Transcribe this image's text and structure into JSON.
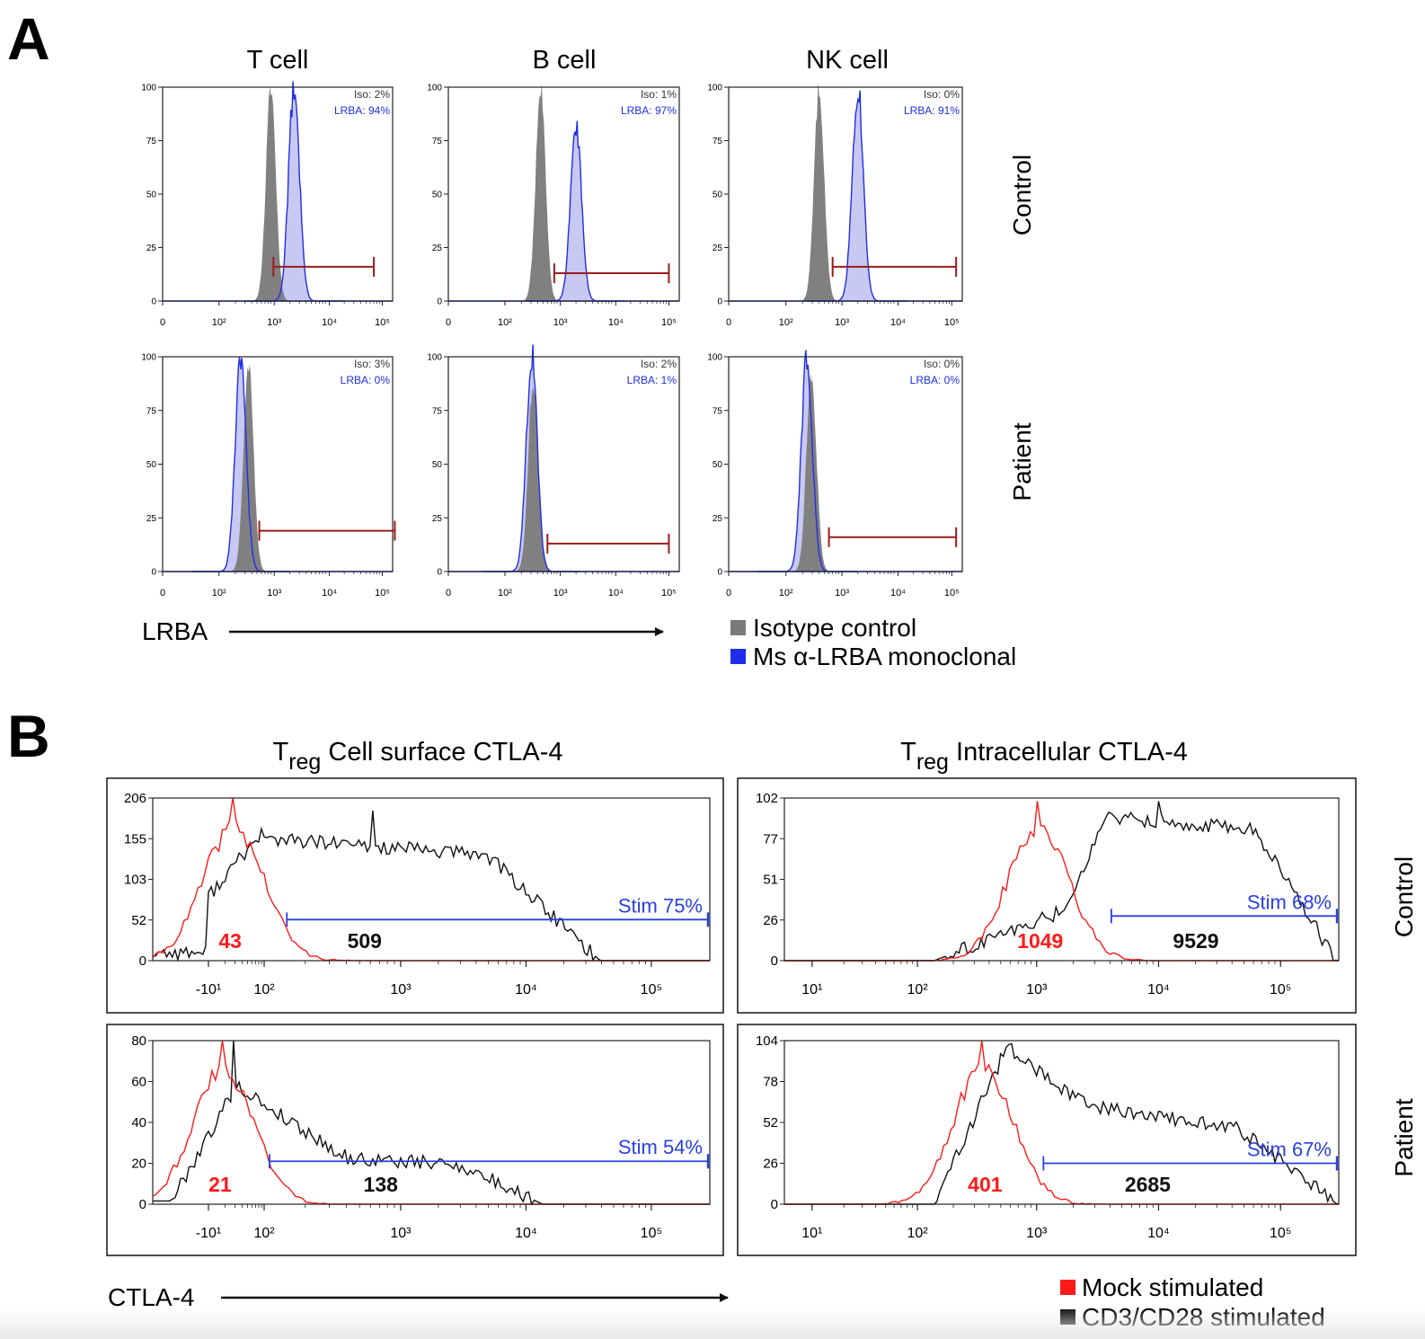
{
  "panel_a": {
    "label": "A",
    "columns": [
      "T cell",
      "B cell",
      "NK cell"
    ],
    "rows": [
      "Control",
      "Patient"
    ],
    "x_axis_label": "LRBA",
    "legend": [
      {
        "label": "Isotype control",
        "color": "#7a7a7a"
      },
      {
        "label": "Ms α-LRBA monoclonal",
        "color": "#1f2ee8"
      }
    ]
  },
  "panel_b": {
    "label": "B",
    "columns": [
      {
        "main": "T",
        "sub": "reg",
        "rest": " Cell surface CTLA-4"
      },
      {
        "main": "T",
        "sub": "reg",
        "rest": " Intracellular CTLA-4"
      }
    ],
    "rows": [
      "Control",
      "Patient"
    ],
    "x_axis_label": "CTLA-4",
    "legend": [
      {
        "label": "Mock stimulated",
        "color": "#ff1a1a"
      },
      {
        "label": "CD3/CD28 stimulated",
        "color": "#111111"
      }
    ]
  },
  "chart_data": [
    {
      "type": "line",
      "panel": "A",
      "cell": "T cell",
      "row": "Control",
      "xscale": "log",
      "ylim": [
        0,
        100
      ],
      "y_ticks": [
        "100",
        "75",
        "50",
        "25",
        "0"
      ],
      "x_ticks": [
        "0",
        "10²",
        "10³",
        "10⁴",
        "10⁵"
      ],
      "series": [
        {
          "name": "Iso",
          "peak_x": 900,
          "peak_y": 100,
          "gate_percent": "Iso: 2%"
        },
        {
          "name": "LRBA",
          "peak_x": 2400,
          "peak_y": 100,
          "gate_percent": "LRBA: 94%"
        }
      ],
      "gate": {
        "x_from": 1000,
        "x_to": 70000,
        "y": 16
      }
    },
    {
      "type": "line",
      "panel": "A",
      "cell": "B cell",
      "row": "Control",
      "xscale": "log",
      "ylim": [
        0,
        100
      ],
      "y_ticks": [
        "100",
        "75",
        "50",
        "25",
        "0"
      ],
      "x_ticks": [
        "0",
        "10²",
        "10³",
        "10⁴",
        "10⁵"
      ],
      "series": [
        {
          "name": "Iso",
          "peak_x": 450,
          "peak_y": 100,
          "gate_percent": "Iso: 1%"
        },
        {
          "name": "LRBA",
          "peak_x": 2000,
          "peak_y": 82,
          "gate_percent": "LRBA: 97%"
        }
      ],
      "gate": {
        "x_from": 800,
        "x_to": 100000,
        "y": 13
      }
    },
    {
      "type": "line",
      "panel": "A",
      "cell": "NK cell",
      "row": "Control",
      "xscale": "log",
      "ylim": [
        0,
        100
      ],
      "y_ticks": [
        "100",
        "75",
        "50",
        "25",
        "0"
      ],
      "x_ticks": [
        "0",
        "10²",
        "10³",
        "10⁴",
        "10⁵"
      ],
      "series": [
        {
          "name": "Iso",
          "peak_x": 400,
          "peak_y": 100,
          "gate_percent": "Iso: 0%"
        },
        {
          "name": "LRBA",
          "peak_x": 2000,
          "peak_y": 100,
          "gate_percent": "LRBA: 91%"
        }
      ],
      "gate": {
        "x_from": 700,
        "x_to": 120000,
        "y": 16
      }
    },
    {
      "type": "line",
      "panel": "A",
      "cell": "T cell",
      "row": "Patient",
      "xscale": "log",
      "ylim": [
        0,
        100
      ],
      "y_ticks": [
        "100",
        "75",
        "50",
        "25",
        "0"
      ],
      "x_ticks": [
        "0",
        "10²",
        "10³",
        "10⁴",
        "10⁵"
      ],
      "series": [
        {
          "name": "Iso",
          "peak_x": 350,
          "peak_y": 97,
          "gate_percent": "Iso: 3%"
        },
        {
          "name": "LRBA",
          "peak_x": 250,
          "peak_y": 100,
          "gate_percent": "LRBA: 0%"
        }
      ],
      "gate": {
        "x_from": 550,
        "x_to": 170000,
        "y": 19
      }
    },
    {
      "type": "line",
      "panel": "A",
      "cell": "B cell",
      "row": "Patient",
      "xscale": "log",
      "ylim": [
        0,
        100
      ],
      "y_ticks": [
        "100",
        "75",
        "50",
        "25",
        "0"
      ],
      "x_ticks": [
        "0",
        "10²",
        "10³",
        "10⁴",
        "10⁵"
      ],
      "series": [
        {
          "name": "Iso",
          "peak_x": 330,
          "peak_y": 90,
          "gate_percent": "Iso: 2%"
        },
        {
          "name": "LRBA",
          "peak_x": 310,
          "peak_y": 100,
          "gate_percent": "LRBA: 1%"
        }
      ],
      "gate": {
        "x_from": 600,
        "x_to": 100000,
        "y": 13
      }
    },
    {
      "type": "line",
      "panel": "A",
      "cell": "NK cell",
      "row": "Patient",
      "xscale": "log",
      "ylim": [
        0,
        100
      ],
      "y_ticks": [
        "100",
        "75",
        "50",
        "25",
        "0"
      ],
      "x_ticks": [
        "0",
        "10²",
        "10³",
        "10⁴",
        "10⁵"
      ],
      "series": [
        {
          "name": "Iso",
          "peak_x": 290,
          "peak_y": 92,
          "gate_percent": "Iso: 0%"
        },
        {
          "name": "LRBA",
          "peak_x": 240,
          "peak_y": 100,
          "gate_percent": "LRBA: 0%"
        }
      ],
      "gate": {
        "x_from": 600,
        "x_to": 120000,
        "y": 16
      }
    },
    {
      "type": "line",
      "panel": "B",
      "cell": "Treg Cell surface CTLA-4",
      "row": "Control",
      "xscale": "biexponential",
      "ylim": [
        0,
        206
      ],
      "y_ticks": [
        "206",
        "155",
        "103",
        "52",
        "0"
      ],
      "x_ticks": [
        "-10¹",
        "10²",
        "10³",
        "10⁴",
        "10⁵"
      ],
      "series": [
        {
          "name": "Mock stimulated",
          "peak_x": 40,
          "peak_y": 206,
          "mfi": "43"
        },
        {
          "name": "CD3/CD28 stimulated",
          "peak_x": 700,
          "peak_y": 190,
          "mfi": "509"
        }
      ],
      "gate": {
        "x_from": 150,
        "x_to": 300000,
        "y": 52,
        "label": "Stim 75%"
      }
    },
    {
      "type": "line",
      "panel": "B",
      "cell": "Treg Intracellular CTLA-4",
      "row": "Control",
      "xscale": "log",
      "ylim": [
        0,
        102
      ],
      "y_ticks": [
        "102",
        "77",
        "51",
        "26",
        "0"
      ],
      "x_ticks": [
        "10¹",
        "10²",
        "10³",
        "10⁴",
        "10⁵"
      ],
      "series": [
        {
          "name": "Mock stimulated",
          "peak_x": 1000,
          "peak_y": 100,
          "mfi": "1049"
        },
        {
          "name": "CD3/CD28 stimulated",
          "peak_x": 10000,
          "peak_y": 100,
          "mfi": "9529"
        }
      ],
      "gate": {
        "x_from": 4000,
        "x_to": 300000,
        "y": 28,
        "label": "Stim 68%"
      }
    },
    {
      "type": "line",
      "panel": "B",
      "cell": "Treg Cell surface CTLA-4",
      "row": "Patient",
      "xscale": "biexponential",
      "ylim": [
        0,
        80
      ],
      "y_ticks": [
        "80",
        "60",
        "40",
        "20",
        "0"
      ],
      "x_ticks": [
        "-10¹",
        "10²",
        "10³",
        "10⁴",
        "10⁵"
      ],
      "series": [
        {
          "name": "Mock stimulated",
          "peak_x": 20,
          "peak_y": 80,
          "mfi": "21"
        },
        {
          "name": "CD3/CD28 stimulated",
          "peak_x": 40,
          "peak_y": 80,
          "mfi": "138"
        }
      ],
      "gate": {
        "x_from": 110,
        "x_to": 300000,
        "y": 21,
        "label": "Stim 54%"
      }
    },
    {
      "type": "line",
      "panel": "B",
      "cell": "Treg Intracellular CTLA-4",
      "row": "Patient",
      "xscale": "log",
      "ylim": [
        0,
        104
      ],
      "y_ticks": [
        "104",
        "78",
        "52",
        "26",
        "0"
      ],
      "x_ticks": [
        "10¹",
        "10²",
        "10³",
        "10⁴",
        "10⁵"
      ],
      "series": [
        {
          "name": "Mock stimulated",
          "peak_x": 350,
          "peak_y": 104,
          "mfi": "401"
        },
        {
          "name": "CD3/CD28 stimulated",
          "peak_x": 600,
          "peak_y": 102,
          "mfi": "2685"
        }
      ],
      "gate": {
        "x_from": 1100,
        "x_to": 300000,
        "y": 26,
        "label": "Stim 67%"
      }
    }
  ]
}
